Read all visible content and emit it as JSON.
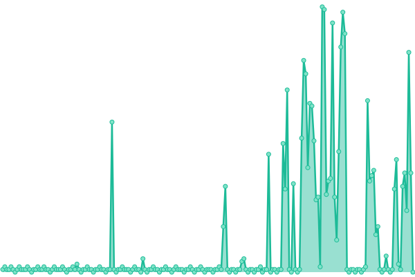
{
  "chart_data": {
    "type": "line",
    "color": "#1dbb98",
    "marker_color": "#7fe3c8",
    "area": true,
    "ylim": [
      0,
      100
    ],
    "values": [
      1,
      2,
      1,
      1,
      2,
      1,
      0,
      1,
      2,
      1,
      1,
      1,
      2,
      1,
      0,
      1,
      1,
      2,
      1,
      1,
      2,
      1,
      1,
      0,
      1,
      2,
      1,
      1,
      1,
      2,
      1,
      0,
      1,
      1,
      2,
      1,
      3,
      1,
      0,
      1,
      1,
      2,
      1,
      1,
      0,
      1,
      1,
      2,
      1,
      1,
      0,
      1,
      1,
      56,
      1,
      0,
      1,
      1,
      2,
      1,
      1,
      1,
      0,
      1,
      2,
      1,
      1,
      0,
      5,
      1,
      0,
      1,
      1,
      2,
      1,
      1,
      0,
      1,
      1,
      2,
      1,
      1,
      0,
      1,
      2,
      1,
      1,
      1,
      0,
      1,
      1,
      2,
      1,
      0,
      1,
      1,
      2,
      1,
      0,
      1,
      1,
      1,
      0,
      1,
      1,
      2,
      1,
      17,
      32,
      1,
      0,
      1,
      1,
      0,
      1,
      1,
      4,
      5,
      1,
      0,
      1,
      1,
      0,
      1,
      1,
      2,
      0,
      1,
      1,
      44,
      0,
      1,
      1,
      0,
      1,
      1,
      48,
      31,
      68,
      1,
      0,
      33,
      1,
      0,
      1,
      50,
      79,
      74,
      39,
      63,
      62,
      49,
      27,
      28,
      2,
      99,
      98,
      29,
      34,
      35,
      93,
      28,
      12,
      45,
      84,
      97,
      89,
      1,
      0,
      1,
      1,
      0,
      1,
      1,
      0,
      1,
      2,
      64,
      34,
      36,
      38,
      14,
      17,
      1,
      0,
      1,
      6,
      1,
      0,
      1,
      31,
      42,
      3,
      1,
      32,
      37,
      23,
      82,
      37,
      0
    ]
  }
}
